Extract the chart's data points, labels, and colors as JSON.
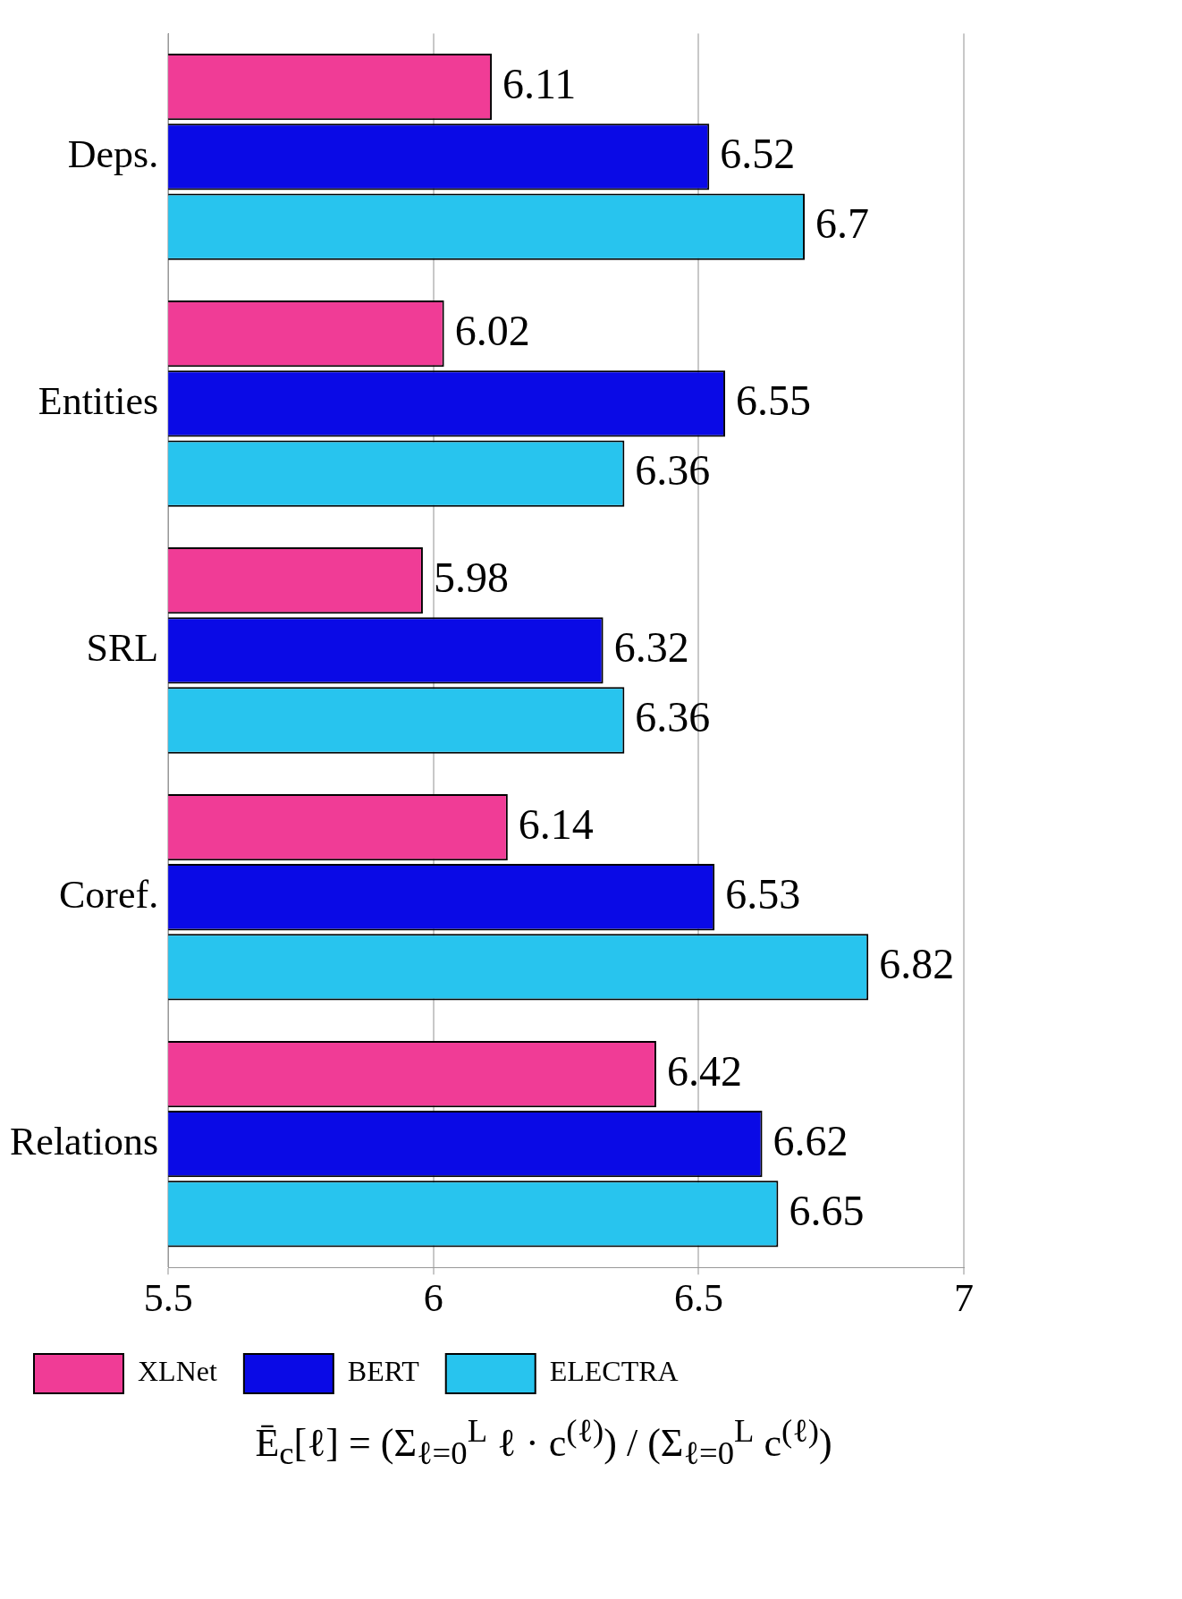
{
  "chart_data": {
    "type": "bar",
    "orientation": "horizontal",
    "categories": [
      "Deps.",
      "Entities",
      "SRL",
      "Coref.",
      "Relations"
    ],
    "series": [
      {
        "name": "XLNet",
        "color": "#f03c96",
        "values": [
          6.11,
          6.02,
          5.98,
          6.14,
          6.42
        ]
      },
      {
        "name": "BERT",
        "color": "#0a0ae6",
        "values": [
          6.52,
          6.55,
          6.32,
          6.53,
          6.62
        ]
      },
      {
        "name": "ELECTRA",
        "color": "#28c4ee",
        "values": [
          6.7,
          6.36,
          6.36,
          6.82,
          6.65
        ]
      }
    ],
    "xlim": [
      5.5,
      7
    ],
    "xticks": [
      5.5,
      6,
      6.5,
      7
    ],
    "grid": "x",
    "legend": "bottom left",
    "data_labels": true,
    "xlabel": "Ē$_{c}$[ℓ] = (Σ$_{ℓ=0}$$^{L}$ ℓ · c$^{(ℓ)}$) / (Σ$_{ℓ=0}$$^{L}$ c$^{(ℓ)}$)"
  }
}
